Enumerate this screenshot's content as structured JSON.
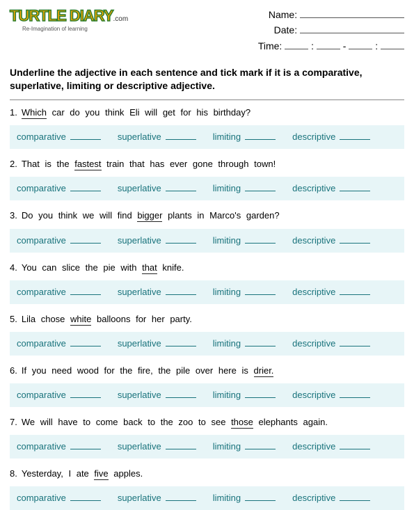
{
  "logo": {
    "main": "TURTLE DIARY",
    "suffix": ".com",
    "tag": "Re-Imagination of learning"
  },
  "header": {
    "name_label": "Name:",
    "date_label": "Date:",
    "time_label": "Time:",
    "colon": ":",
    "dash": "-"
  },
  "instructions": "Underline the adjective in each sentence and tick mark if it is a comparative, superlative, limiting or descriptive adjective.",
  "choice_labels": [
    "comparative",
    "superlative",
    "limiting",
    "descriptive"
  ],
  "questions": [
    {
      "n": "1.",
      "words": [
        "Which",
        "car",
        "do",
        "you",
        "think",
        "Eli",
        "will",
        "get",
        "for",
        "his",
        "birthday?"
      ],
      "underline": [
        0
      ]
    },
    {
      "n": "2.",
      "words": [
        "That",
        "is",
        "the",
        "fastest",
        "train",
        "that",
        "has",
        "ever",
        "gone",
        "through",
        "town!"
      ],
      "underline": [
        3
      ]
    },
    {
      "n": "3.",
      "words": [
        "Do",
        "you",
        "think",
        "we",
        "will",
        "find",
        "bigger",
        "plants",
        "in",
        "Marco's",
        "garden?"
      ],
      "underline": [
        6
      ]
    },
    {
      "n": "4.",
      "words": [
        "You",
        "can",
        "slice",
        "the",
        "pie",
        "with",
        "that",
        "knife."
      ],
      "underline": [
        6
      ]
    },
    {
      "n": "5.",
      "words": [
        "Lila",
        "chose",
        "white",
        "balloons",
        "for",
        "her",
        "party."
      ],
      "underline": [
        2
      ]
    },
    {
      "n": "6.",
      "words": [
        "If",
        "you",
        "need",
        "wood",
        "for",
        "the",
        "fire,",
        "the",
        "pile",
        "over",
        "here",
        "is",
        "drier."
      ],
      "underline": [
        12
      ]
    },
    {
      "n": "7.",
      "words": [
        "We",
        "will",
        "have",
        "to",
        "come",
        "back",
        "to",
        "the",
        "zoo",
        "to",
        "see",
        "those",
        "elephants",
        "again."
      ],
      "underline": [
        11
      ]
    },
    {
      "n": "8.",
      "words": [
        "Yesterday,",
        "I",
        "ate",
        "five",
        "apples."
      ],
      "underline": [
        3
      ]
    }
  ],
  "colors": {
    "choice_bg": "#e7f5f7",
    "choice_text": "#19737c",
    "logo_fill": "#f5a400",
    "logo_stroke": "#2d7f2d"
  }
}
